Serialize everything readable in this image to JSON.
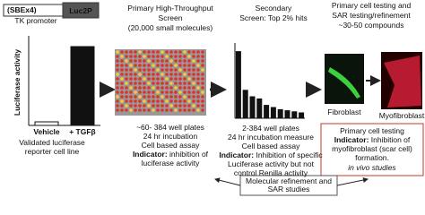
{
  "reporter": {
    "promoter": "(SBEx4)",
    "promoter_sub": "TK promoter",
    "gene": "Luc2P",
    "chart": {
      "type": "bar",
      "ylabel": "Luciferase activity",
      "categories": [
        "Vehicle",
        "+ TGFβ"
      ],
      "values": [
        1,
        22
      ],
      "ylim": [
        0,
        25
      ]
    },
    "caption": [
      "Validated luciferase",
      "reporter cell line"
    ]
  },
  "primary": {
    "title": [
      "Primary High-Throughput",
      "Screen",
      "(20,000 small molecules)"
    ],
    "details": [
      "~60- 384 well plates",
      "24 hr incubation",
      "Cell based assay"
    ],
    "indicator": {
      "label": "Indicator:",
      "lines": [
        " inhibition of",
        "luciferase activity"
      ]
    }
  },
  "secondary": {
    "title": [
      "Secondary",
      "Screen: Top 2% hits"
    ],
    "chart": {
      "type": "bar",
      "values": [
        0.62,
        0.26,
        0.2,
        0.18,
        0.12,
        0.1,
        0.08,
        0.07,
        0.06,
        0.05
      ],
      "ylim": [
        0,
        0.7
      ]
    },
    "details": [
      "2-384 well plates",
      "24 hr incubation measure",
      "Cell based assay"
    ],
    "indicator": {
      "label": "Indicator:",
      "lines": [
        " Inhibition of specific",
        "Luciferase activity but not",
        "control Renilla activity"
      ]
    }
  },
  "tertiary": {
    "title": [
      "Primary cell testing and",
      "SAR testing/refinement",
      "~30-50 compounds"
    ],
    "cells": [
      "Fibroblast",
      "Myofibroblast"
    ],
    "box": {
      "heading": "Primary cell testing",
      "indicator_label": "Indicator:",
      "lines": [
        " Inhibition of",
        "myofibroblast (scar cell)",
        "formation."
      ],
      "note": "in vivo studies"
    }
  },
  "refinement": [
    "Molecular refinement and",
    "SAR studies"
  ]
}
